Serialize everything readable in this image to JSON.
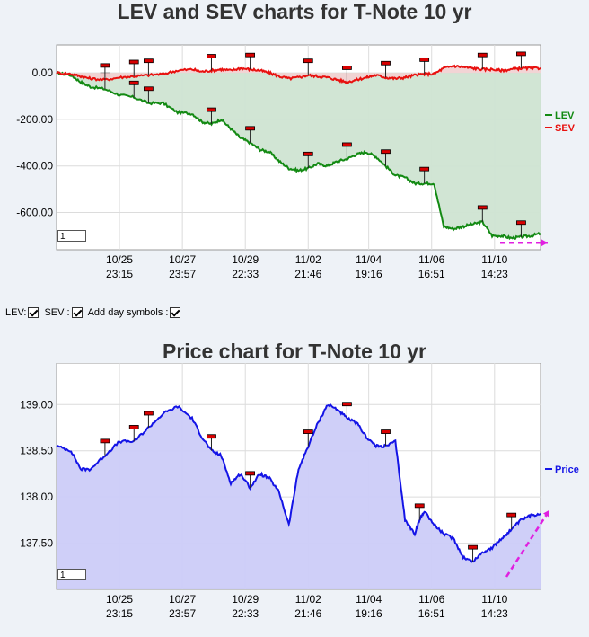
{
  "controls": {
    "lev_label": "LEV:",
    "sev_label": "SEV :",
    "symbols_label": "Add day symbols :",
    "lev_checked": true,
    "sev_checked": true,
    "symbols_checked": true
  },
  "chart_data": [
    {
      "type": "area",
      "title": "LEV and SEV charts for T-Note 10 yr",
      "xlabel": "",
      "ylabel": "",
      "zoom_value": "1",
      "x_ticks": [
        {
          "date": "10/25",
          "time": "23:15"
        },
        {
          "date": "10/27",
          "time": "23:57"
        },
        {
          "date": "10/29",
          "time": "22:33"
        },
        {
          "date": "11/02",
          "time": "21:46"
        },
        {
          "date": "11/04",
          "time": "19:16"
        },
        {
          "date": "11/06",
          "time": "16:51"
        },
        {
          "date": "11/10",
          "time": "14:23"
        }
      ],
      "y_ticks": [
        "0.00",
        "-200.00",
        "-400.00",
        "-600.00"
      ],
      "ylim": [
        -760,
        120
      ],
      "x_range": [
        0,
        1
      ],
      "grid": true,
      "legend_position": "right",
      "series": [
        {
          "name": "LEV",
          "color": "#138a13",
          "fill": "#cfe4d2",
          "x": [
            0.0,
            0.03,
            0.05,
            0.07,
            0.1,
            0.13,
            0.16,
            0.19,
            0.22,
            0.25,
            0.28,
            0.3,
            0.32,
            0.34,
            0.36,
            0.38,
            0.4,
            0.42,
            0.44,
            0.46,
            0.48,
            0.5,
            0.52,
            0.54,
            0.56,
            0.58,
            0.6,
            0.62,
            0.64,
            0.66,
            0.68,
            0.7,
            0.72,
            0.74,
            0.76,
            0.78,
            0.8,
            0.82,
            0.84,
            0.86,
            0.88,
            0.9,
            0.92,
            0.94,
            0.96,
            0.98,
            1.0
          ],
          "y": [
            0,
            -10,
            -40,
            -60,
            -70,
            -95,
            -105,
            -130,
            -130,
            -170,
            -175,
            -210,
            -220,
            -200,
            -240,
            -280,
            -300,
            -330,
            -340,
            -380,
            -410,
            -420,
            -410,
            -390,
            -400,
            -380,
            -370,
            -350,
            -340,
            -360,
            -400,
            -440,
            -450,
            -475,
            -475,
            -475,
            -660,
            -670,
            -660,
            -650,
            -640,
            -700,
            -700,
            -710,
            -705,
            -700,
            -690
          ]
        },
        {
          "name": "SEV",
          "color": "#e8110f",
          "fill": "#f1d2d3",
          "x": [
            0.0,
            0.03,
            0.05,
            0.07,
            0.1,
            0.13,
            0.16,
            0.19,
            0.22,
            0.25,
            0.28,
            0.3,
            0.32,
            0.34,
            0.36,
            0.38,
            0.4,
            0.42,
            0.44,
            0.46,
            0.48,
            0.5,
            0.52,
            0.54,
            0.56,
            0.58,
            0.6,
            0.62,
            0.64,
            0.66,
            0.68,
            0.7,
            0.72,
            0.74,
            0.76,
            0.78,
            0.8,
            0.82,
            0.84,
            0.86,
            0.88,
            0.9,
            0.92,
            0.94,
            0.96,
            0.98,
            1.0
          ],
          "y": [
            0,
            -5,
            -15,
            -25,
            -30,
            -20,
            -15,
            -10,
            -5,
            10,
            15,
            5,
            10,
            15,
            10,
            20,
            15,
            10,
            0,
            -15,
            -25,
            -20,
            -10,
            -15,
            -20,
            -30,
            -40,
            -30,
            -20,
            -10,
            -20,
            -25,
            -20,
            -10,
            -5,
            -5,
            20,
            30,
            25,
            20,
            15,
            15,
            10,
            15,
            20,
            20,
            20
          ]
        }
      ]
    },
    {
      "type": "area",
      "title": "Price chart for T-Note 10 yr",
      "xlabel": "",
      "ylabel": "",
      "zoom_value": "1",
      "x_ticks": [
        {
          "date": "10/25",
          "time": "23:15"
        },
        {
          "date": "10/27",
          "time": "23:57"
        },
        {
          "date": "10/29",
          "time": "22:33"
        },
        {
          "date": "11/02",
          "time": "21:46"
        },
        {
          "date": "11/04",
          "time": "19:16"
        },
        {
          "date": "11/06",
          "time": "16:51"
        },
        {
          "date": "11/10",
          "time": "14:23"
        }
      ],
      "y_ticks": [
        "139.00",
        "138.50",
        "138.00",
        "137.50"
      ],
      "ylim": [
        137.0,
        139.45
      ],
      "x_range": [
        0,
        1
      ],
      "grid": true,
      "legend_position": "right",
      "series": [
        {
          "name": "Price",
          "color": "#1414e6",
          "fill": "#ccccf8",
          "x": [
            0.0,
            0.03,
            0.05,
            0.07,
            0.1,
            0.13,
            0.16,
            0.19,
            0.22,
            0.25,
            0.28,
            0.3,
            0.32,
            0.34,
            0.36,
            0.38,
            0.4,
            0.42,
            0.44,
            0.46,
            0.48,
            0.5,
            0.52,
            0.54,
            0.56,
            0.58,
            0.6,
            0.62,
            0.64,
            0.66,
            0.68,
            0.7,
            0.72,
            0.74,
            0.75,
            0.76,
            0.78,
            0.8,
            0.82,
            0.84,
            0.86,
            0.88,
            0.9,
            0.92,
            0.94,
            0.96,
            0.98,
            1.0
          ],
          "y": [
            138.55,
            138.5,
            138.3,
            138.3,
            138.45,
            138.6,
            138.6,
            138.75,
            138.9,
            138.98,
            138.85,
            138.65,
            138.5,
            138.45,
            138.15,
            138.25,
            138.1,
            138.25,
            138.2,
            138.05,
            137.7,
            138.3,
            138.55,
            138.8,
            139.0,
            138.95,
            138.85,
            138.8,
            138.65,
            138.55,
            138.55,
            138.6,
            137.75,
            137.6,
            137.75,
            137.85,
            137.7,
            137.6,
            137.55,
            137.35,
            137.3,
            137.4,
            137.45,
            137.55,
            137.65,
            137.75,
            137.8,
            137.82
          ]
        }
      ]
    }
  ]
}
